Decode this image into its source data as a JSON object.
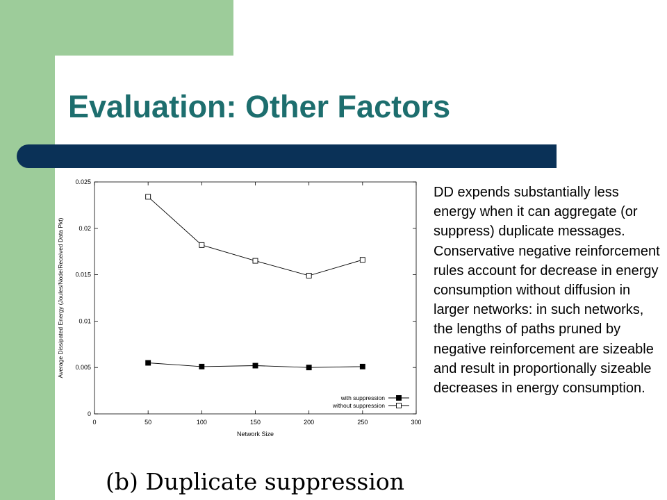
{
  "slide": {
    "title": "Evaluation: Other Factors",
    "paragraphs": [
      "DD expends substantially less energy when it can aggregate (or suppress) duplicate messages.",
      "Conservative negative reinforcement rules account for decrease in energy consumption without diffusion in larger networks: in such networks, the lengths of paths pruned by negative reinforcement are sizeable and result in proportionally sizeable decreases in energy consumption."
    ],
    "caption": "(b) Duplicate suppression",
    "colors": {
      "title": "#1d6e6e",
      "rule_bar": "#0a3157",
      "accent_green": "#9dcc9a"
    }
  },
  "chart_data": {
    "type": "line",
    "xlabel": "Network Size",
    "ylabel": "Average Dissipated Energy (Joules/Node/Received Data Pkt)",
    "xlim": [
      0,
      300
    ],
    "ylim": [
      0,
      0.025
    ],
    "x_ticks": [
      "0",
      "50",
      "100",
      "150",
      "200",
      "250",
      "300"
    ],
    "y_ticks": [
      "0",
      "0.005",
      "0.01",
      "0.015",
      "0.02",
      "0.025"
    ],
    "x": [
      50,
      100,
      150,
      200,
      250
    ],
    "series": [
      {
        "name": "with suppression",
        "marker": "filled-square",
        "values": [
          0.0055,
          0.0051,
          0.0052,
          0.005,
          0.0051
        ]
      },
      {
        "name": "without suppression",
        "marker": "open-square",
        "values": [
          0.0234,
          0.0182,
          0.0165,
          0.0149,
          0.0166
        ]
      }
    ],
    "legend_position": "bottom-right",
    "grid": false
  }
}
